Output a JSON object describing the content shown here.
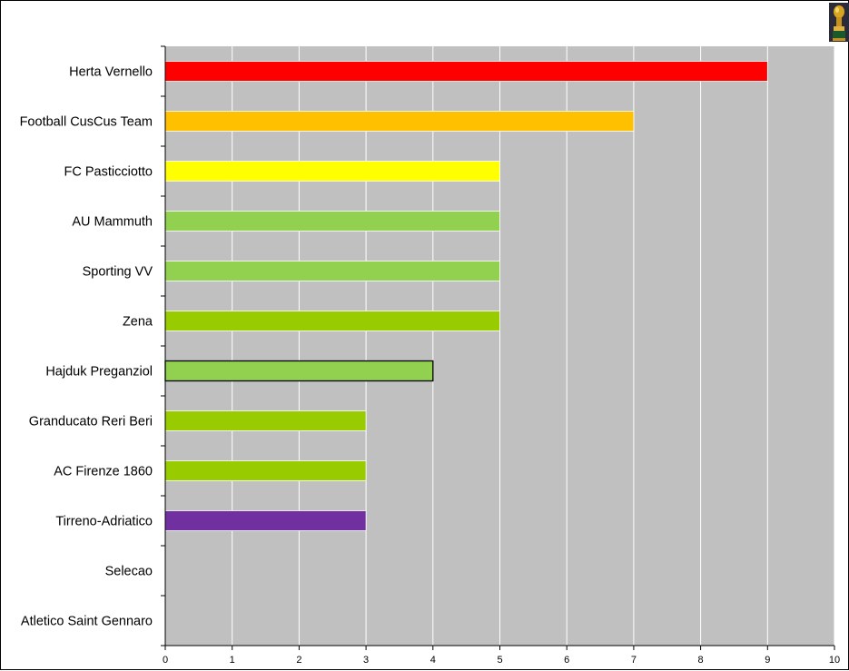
{
  "chart_data": {
    "type": "bar",
    "orientation": "horizontal",
    "categories": [
      "Herta Vernello",
      "Football CusCus Team",
      "FC Pasticciotto",
      "AU Mammuth",
      "Sporting VV",
      "Zena",
      "Hajduk Preganziol",
      "Granducato Reri Beri",
      "AC Firenze 1860",
      "Tirreno-Adriatico",
      "Selecao",
      "Atletico Saint Gennaro"
    ],
    "values": [
      9,
      7,
      5,
      5,
      5,
      5,
      4,
      3,
      3,
      3,
      0,
      0
    ],
    "bar_colors": [
      "#ff0000",
      "#ffc000",
      "#ffff00",
      "#92d050",
      "#92d050",
      "#99cc00",
      "#92d050",
      "#99cc00",
      "#99cc00",
      "#7030a0",
      "#92d050",
      "#92d050"
    ],
    "highlighted_bar_index": 6,
    "xlim": [
      0,
      10
    ],
    "xticks": [
      0,
      1,
      2,
      3,
      4,
      5,
      6,
      7,
      8,
      9,
      10
    ],
    "grid": "vertical",
    "plot_background": "#c0c0c0",
    "gridline_color": "#ffffff",
    "legend": "none",
    "title": "",
    "xlabel": "",
    "ylabel": ""
  },
  "decoration": {
    "icon": "trophy-icon"
  }
}
